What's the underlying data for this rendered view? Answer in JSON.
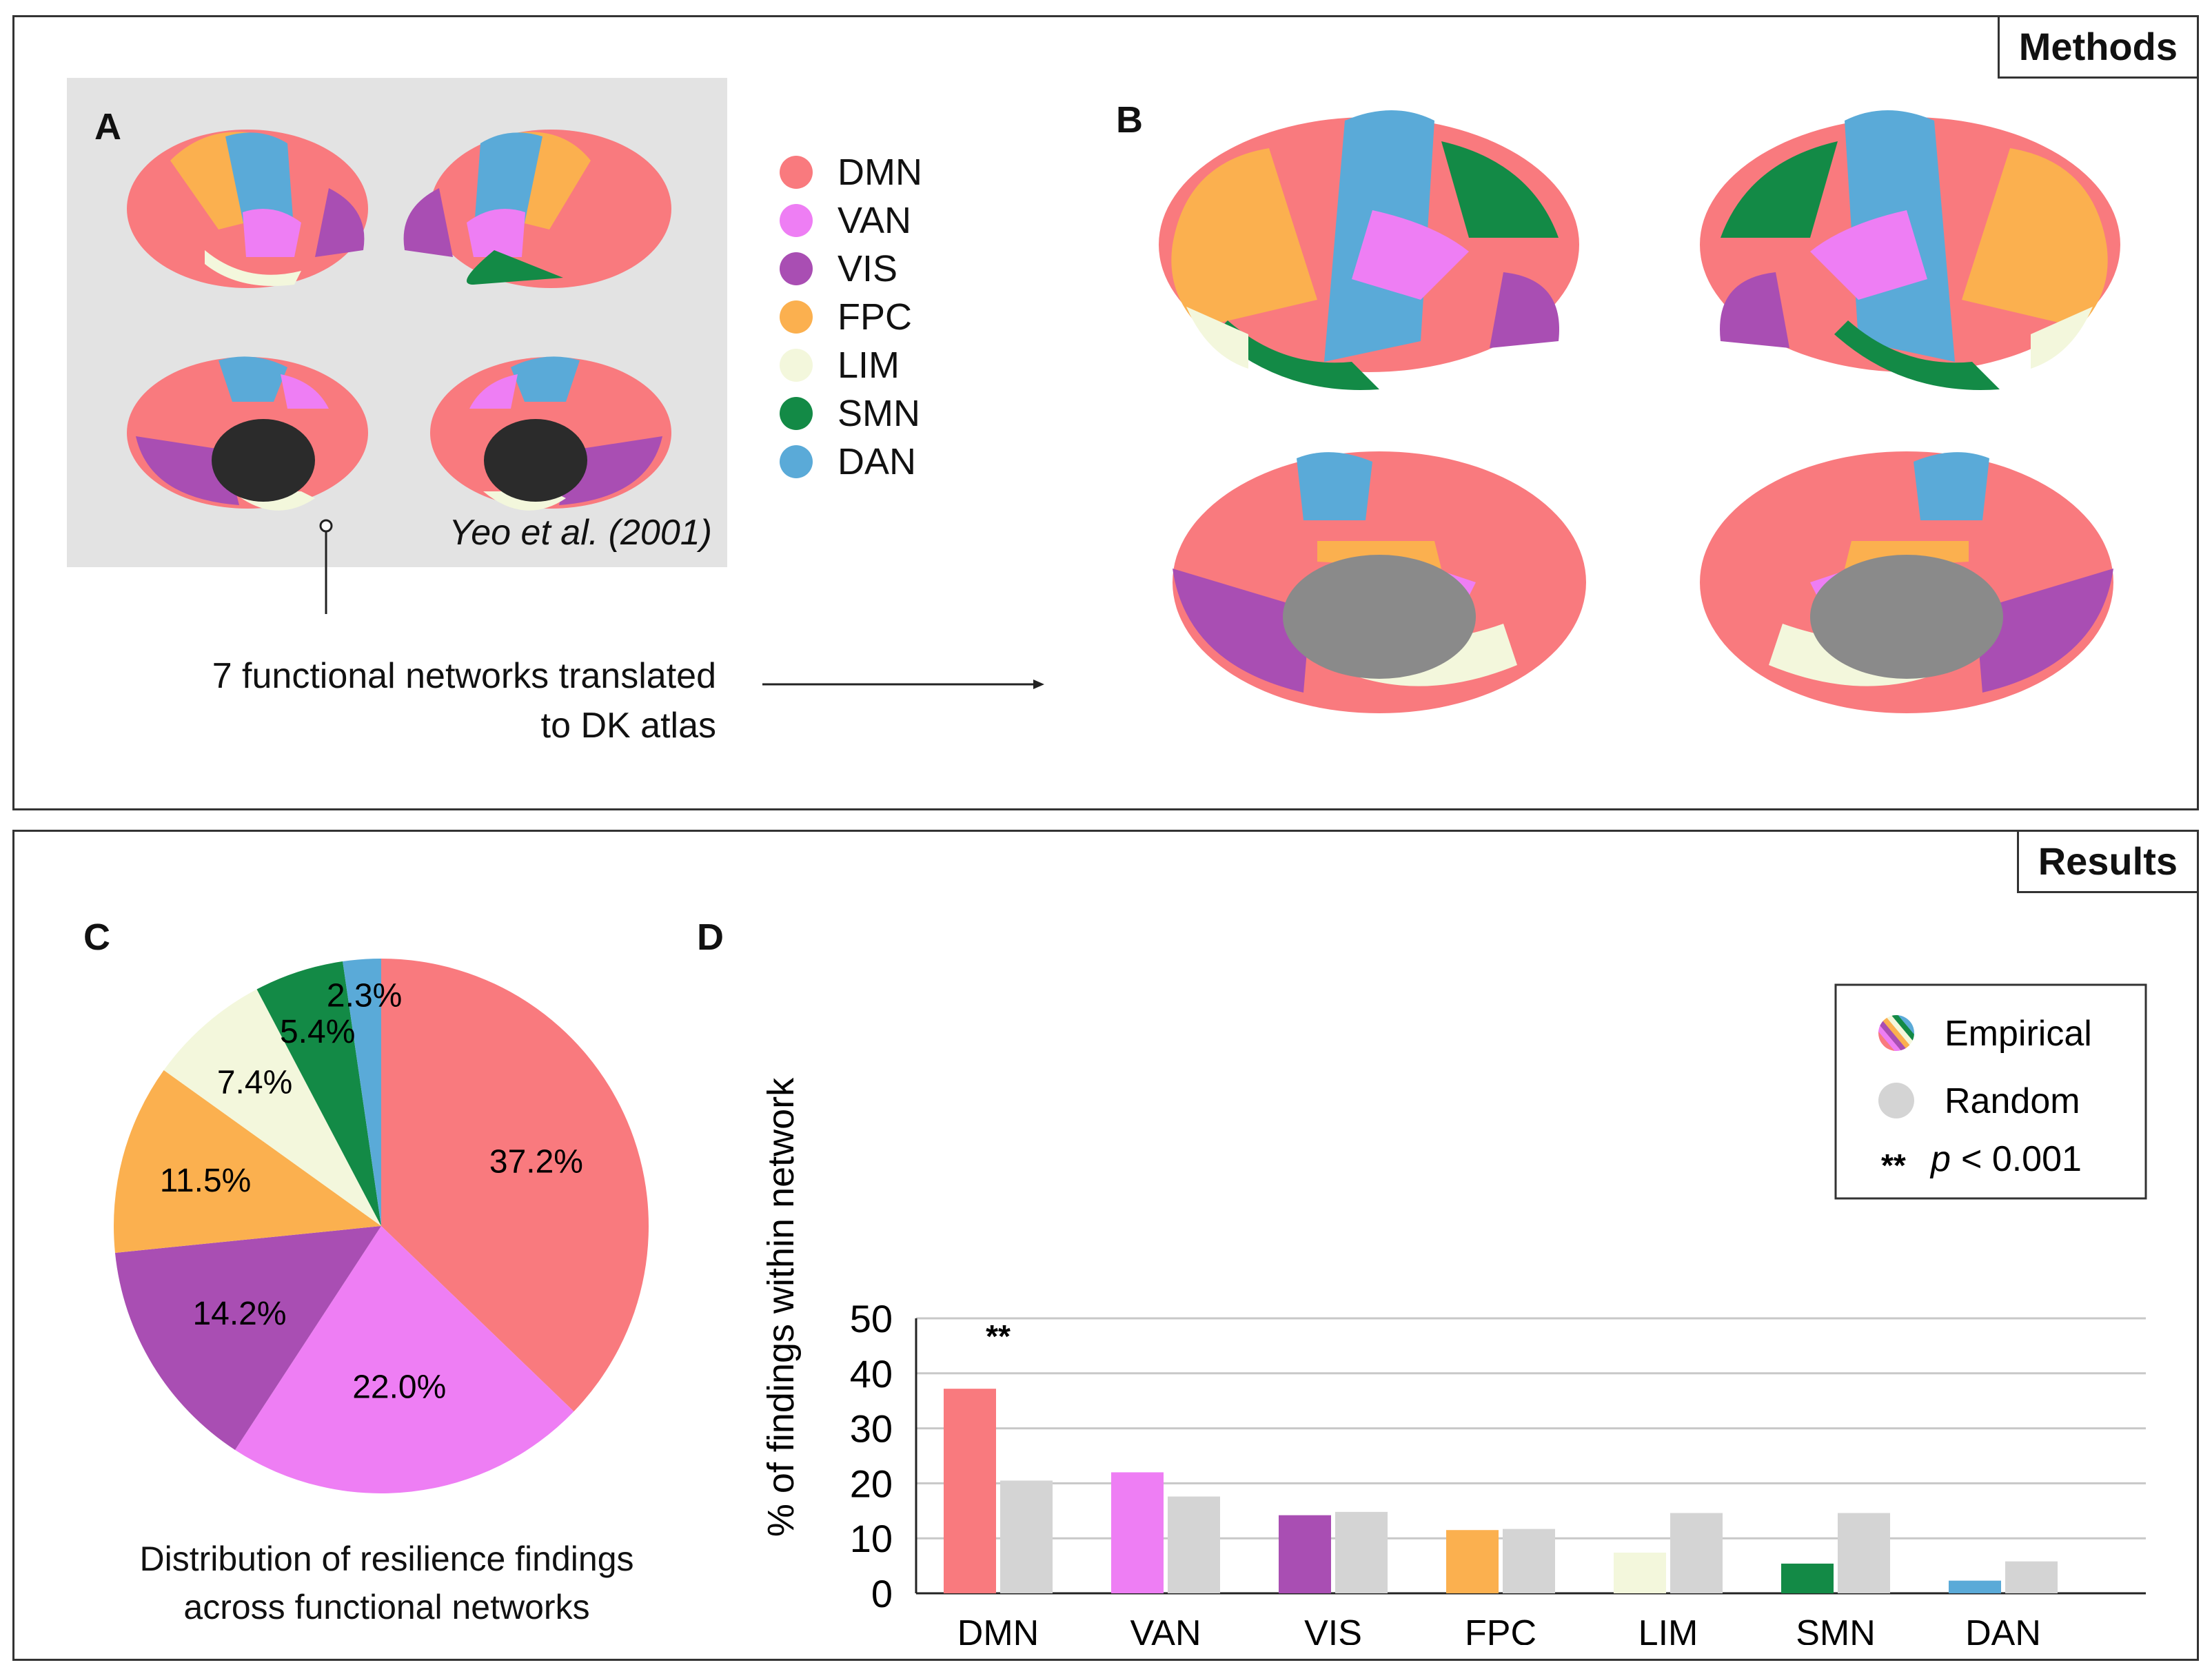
{
  "methods": {
    "tag": "Methods",
    "panel_a_label": "A",
    "panel_b_label": "B",
    "citation": "Yeo et al. (2001)",
    "caption_line1": "7 functional networks translated",
    "caption_line2": "to DK atlas",
    "legend": [
      {
        "name": "DMN",
        "color": "#f97a7e"
      },
      {
        "name": "VAN",
        "color": "#ee7ef4"
      },
      {
        "name": "VIS",
        "color": "#a94eb3"
      },
      {
        "name": "FPC",
        "color": "#fbb04f"
      },
      {
        "name": "LIM",
        "color": "#f3f7dc"
      },
      {
        "name": "SMN",
        "color": "#138a46"
      },
      {
        "name": "DAN",
        "color": "#5aaad8"
      }
    ]
  },
  "results": {
    "tag": "Results",
    "panel_c_label": "C",
    "panel_d_label": "D",
    "pie_caption_line1": "Distribution of resilience findings",
    "pie_caption_line2": "across functional networks",
    "legend": {
      "empirical": "Empirical",
      "random": "Random",
      "sig_marker": "**",
      "sig_p": "p",
      "sig_text": "< 0.001"
    }
  },
  "chart_data": [
    {
      "type": "pie",
      "title": "Distribution of resilience findings across functional networks",
      "categories": [
        "DMN",
        "VAN",
        "VIS",
        "FPC",
        "LIM",
        "SMN",
        "DAN"
      ],
      "values": [
        37.2,
        22.0,
        14.2,
        11.5,
        7.4,
        5.4,
        2.3
      ],
      "labels": [
        "37.2%",
        "22.0%",
        "14.2%",
        "11.5%",
        "7.4%",
        "5.4%",
        "2.3%"
      ],
      "colors": [
        "#f97a7e",
        "#ee7ef4",
        "#a94eb3",
        "#fbb04f",
        "#f3f7dc",
        "#138a46",
        "#5aaad8"
      ]
    },
    {
      "type": "bar",
      "categories": [
        "DMN",
        "VAN",
        "VIS",
        "FPC",
        "LIM",
        "SMN",
        "DAN"
      ],
      "series": [
        {
          "name": "Empirical",
          "values": [
            37.2,
            22.0,
            14.2,
            11.5,
            7.4,
            5.4,
            2.3
          ]
        },
        {
          "name": "Random",
          "values": [
            20.5,
            17.6,
            14.8,
            11.7,
            14.6,
            14.6,
            5.8
          ]
        }
      ],
      "empirical_colors": [
        "#f97a7e",
        "#ee7ef4",
        "#a94eb3",
        "#fbb04f",
        "#f3f7dc",
        "#138a46",
        "#5aaad8"
      ],
      "random_color": "#d4d4d4",
      "ylabel": "% of findings within network",
      "xlabel": "",
      "ylim": [
        0,
        50
      ],
      "yticks": [
        0,
        10,
        20,
        30,
        40,
        50
      ],
      "grid": true,
      "annotations": [
        {
          "category": "DMN",
          "text": "**"
        }
      ],
      "legend_position": "top-right"
    }
  ]
}
